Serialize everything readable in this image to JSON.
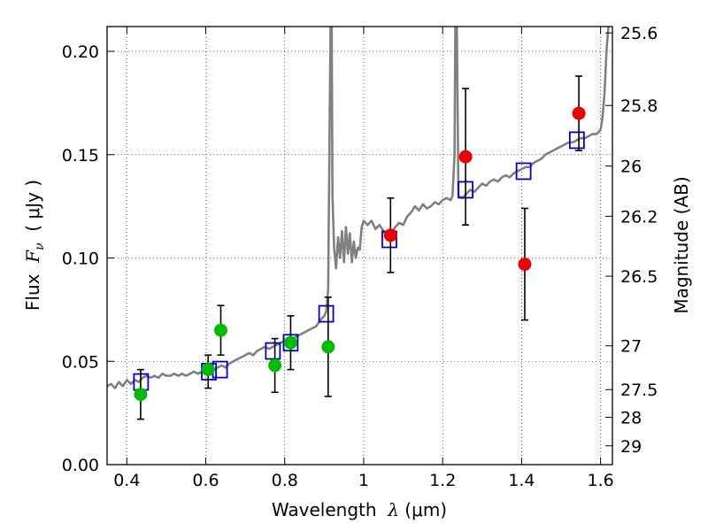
{
  "chart_data": {
    "type": "scatter",
    "xlabel_prefix": "Wavelength  ",
    "xlabel_symbol": "λ",
    "xlabel_suffix": " (μm)",
    "ylabel_prefix": "Flux  ",
    "ylabel_symbol": "F",
    "ylabel_subscript": "ν",
    "ylabel_suffix": "  ( μJy )",
    "y2label": "Magnitude (AB)",
    "xlim": [
      0.35,
      1.63
    ],
    "ylim": [
      0.0,
      0.212
    ],
    "grid": true,
    "grid_style": "dotted",
    "x_ticks": [
      {
        "value": 0.4,
        "label": "0.4"
      },
      {
        "value": 0.6,
        "label": "0.6"
      },
      {
        "value": 0.8,
        "label": "0.8"
      },
      {
        "value": 1.0,
        "label": "1"
      },
      {
        "value": 1.2,
        "label": "1.2"
      },
      {
        "value": 1.4,
        "label": "1.4"
      },
      {
        "value": 1.6,
        "label": "1.6"
      }
    ],
    "y_ticks": [
      {
        "value": 0.0,
        "label": "0.00"
      },
      {
        "value": 0.05,
        "label": "0.05"
      },
      {
        "value": 0.1,
        "label": "0.10"
      },
      {
        "value": 0.15,
        "label": "0.15"
      },
      {
        "value": 0.2,
        "label": "0.20"
      }
    ],
    "y2_ticks": [
      {
        "flux": 0.2089,
        "label": "25.6"
      },
      {
        "flux": 0.1738,
        "label": "25.8"
      },
      {
        "flux": 0.1445,
        "label": "26"
      },
      {
        "flux": 0.1202,
        "label": "26.2"
      },
      {
        "flux": 0.0912,
        "label": "26.5"
      },
      {
        "flux": 0.0575,
        "label": "27"
      },
      {
        "flux": 0.0363,
        "label": "27.5"
      },
      {
        "flux": 0.0229,
        "label": "28"
      },
      {
        "flux": 0.0091,
        "label": "29"
      }
    ],
    "series": [
      {
        "kind": "line",
        "color": "#808080",
        "points": [
          [
            0.35,
            0.038
          ],
          [
            0.36,
            0.039
          ],
          [
            0.37,
            0.037
          ],
          [
            0.38,
            0.04
          ],
          [
            0.39,
            0.038
          ],
          [
            0.4,
            0.041
          ],
          [
            0.41,
            0.039
          ],
          [
            0.42,
            0.041
          ],
          [
            0.43,
            0.04
          ],
          [
            0.44,
            0.042
          ],
          [
            0.45,
            0.043
          ],
          [
            0.46,
            0.042
          ],
          [
            0.47,
            0.043
          ],
          [
            0.48,
            0.042
          ],
          [
            0.49,
            0.044
          ],
          [
            0.5,
            0.043
          ],
          [
            0.51,
            0.043
          ],
          [
            0.52,
            0.044
          ],
          [
            0.53,
            0.043
          ],
          [
            0.54,
            0.044
          ],
          [
            0.55,
            0.043
          ],
          [
            0.56,
            0.044
          ],
          [
            0.57,
            0.045
          ],
          [
            0.58,
            0.044
          ],
          [
            0.59,
            0.045
          ],
          [
            0.6,
            0.046
          ],
          [
            0.61,
            0.045
          ],
          [
            0.62,
            0.046
          ],
          [
            0.63,
            0.047
          ],
          [
            0.64,
            0.048
          ],
          [
            0.65,
            0.047
          ],
          [
            0.66,
            0.049
          ],
          [
            0.67,
            0.05
          ],
          [
            0.68,
            0.051
          ],
          [
            0.69,
            0.052
          ],
          [
            0.7,
            0.053
          ],
          [
            0.71,
            0.054
          ],
          [
            0.72,
            0.053
          ],
          [
            0.73,
            0.055
          ],
          [
            0.74,
            0.056
          ],
          [
            0.75,
            0.057
          ],
          [
            0.76,
            0.056
          ],
          [
            0.77,
            0.057
          ],
          [
            0.78,
            0.058
          ],
          [
            0.79,
            0.059
          ],
          [
            0.8,
            0.06
          ],
          [
            0.81,
            0.059
          ],
          [
            0.82,
            0.061
          ],
          [
            0.83,
            0.062
          ],
          [
            0.84,
            0.063
          ],
          [
            0.85,
            0.064
          ],
          [
            0.86,
            0.065
          ],
          [
            0.87,
            0.066
          ],
          [
            0.88,
            0.067
          ],
          [
            0.89,
            0.07
          ],
          [
            0.9,
            0.072
          ],
          [
            0.905,
            0.074
          ],
          [
            0.91,
            0.085
          ],
          [
            0.913,
            0.15
          ],
          [
            0.916,
            0.212
          ],
          [
            0.919,
            0.212
          ],
          [
            0.921,
            0.13
          ],
          [
            0.925,
            0.105
          ],
          [
            0.93,
            0.095
          ],
          [
            0.935,
            0.11
          ],
          [
            0.94,
            0.1
          ],
          [
            0.945,
            0.113
          ],
          [
            0.95,
            0.098
          ],
          [
            0.955,
            0.115
          ],
          [
            0.96,
            0.102
          ],
          [
            0.965,
            0.112
          ],
          [
            0.97,
            0.098
          ],
          [
            0.975,
            0.108
          ],
          [
            0.98,
            0.1
          ],
          [
            0.985,
            0.105
          ],
          [
            0.99,
            0.104
          ],
          [
            0.995,
            0.115
          ],
          [
            1.0,
            0.118
          ],
          [
            1.01,
            0.116
          ],
          [
            1.02,
            0.118
          ],
          [
            1.03,
            0.114
          ],
          [
            1.04,
            0.116
          ],
          [
            1.05,
            0.113
          ],
          [
            1.06,
            0.11
          ],
          [
            1.07,
            0.112
          ],
          [
            1.08,
            0.115
          ],
          [
            1.09,
            0.117
          ],
          [
            1.1,
            0.116
          ],
          [
            1.11,
            0.12
          ],
          [
            1.12,
            0.122
          ],
          [
            1.13,
            0.125
          ],
          [
            1.14,
            0.123
          ],
          [
            1.15,
            0.126
          ],
          [
            1.16,
            0.124
          ],
          [
            1.17,
            0.125
          ],
          [
            1.18,
            0.127
          ],
          [
            1.19,
            0.126
          ],
          [
            1.2,
            0.128
          ],
          [
            1.21,
            0.129
          ],
          [
            1.22,
            0.128
          ],
          [
            1.225,
            0.13
          ],
          [
            1.23,
            0.15
          ],
          [
            1.232,
            0.212
          ],
          [
            1.236,
            0.212
          ],
          [
            1.24,
            0.13
          ],
          [
            1.25,
            0.129
          ],
          [
            1.26,
            0.131
          ],
          [
            1.27,
            0.133
          ],
          [
            1.28,
            0.132
          ],
          [
            1.29,
            0.134
          ],
          [
            1.3,
            0.136
          ],
          [
            1.31,
            0.135
          ],
          [
            1.32,
            0.137
          ],
          [
            1.33,
            0.138
          ],
          [
            1.34,
            0.137
          ],
          [
            1.35,
            0.139
          ],
          [
            1.36,
            0.14
          ],
          [
            1.37,
            0.139
          ],
          [
            1.38,
            0.141
          ],
          [
            1.39,
            0.142
          ],
          [
            1.4,
            0.143
          ],
          [
            1.41,
            0.144
          ],
          [
            1.42,
            0.144
          ],
          [
            1.43,
            0.146
          ],
          [
            1.44,
            0.147
          ],
          [
            1.45,
            0.148
          ],
          [
            1.46,
            0.15
          ],
          [
            1.47,
            0.151
          ],
          [
            1.48,
            0.152
          ],
          [
            1.49,
            0.153
          ],
          [
            1.5,
            0.154
          ],
          [
            1.51,
            0.155
          ],
          [
            1.52,
            0.156
          ],
          [
            1.53,
            0.156
          ],
          [
            1.54,
            0.157
          ],
          [
            1.55,
            0.158
          ],
          [
            1.56,
            0.158
          ],
          [
            1.57,
            0.159
          ],
          [
            1.58,
            0.16
          ],
          [
            1.59,
            0.16
          ],
          [
            1.6,
            0.162
          ],
          [
            1.605,
            0.168
          ],
          [
            1.61,
            0.18
          ],
          [
            1.615,
            0.2
          ],
          [
            1.62,
            0.212
          ]
        ]
      },
      {
        "kind": "markers",
        "marker": "square-open",
        "color": "#0000cc",
        "points": [
          [
            0.436,
            0.04
          ],
          [
            0.608,
            0.045
          ],
          [
            0.636,
            0.046
          ],
          [
            0.77,
            0.055
          ],
          [
            0.815,
            0.059
          ],
          [
            0.905,
            0.073
          ],
          [
            1.065,
            0.109
          ],
          [
            1.258,
            0.133
          ],
          [
            1.405,
            0.142
          ],
          [
            1.54,
            0.157
          ]
        ]
      },
      {
        "kind": "markers",
        "marker": "circle",
        "color": "#00bb00",
        "points": [
          {
            "x": 0.435,
            "y": 0.034,
            "err_lo": 0.012,
            "err_hi": 0.012
          },
          {
            "x": 0.606,
            "y": 0.046,
            "err_lo": 0.009,
            "err_hi": 0.007
          },
          {
            "x": 0.638,
            "y": 0.065,
            "err_lo": 0.012,
            "err_hi": 0.012
          },
          {
            "x": 0.775,
            "y": 0.048,
            "err_lo": 0.013,
            "err_hi": 0.013
          },
          {
            "x": 0.815,
            "y": 0.059,
            "err_lo": 0.013,
            "err_hi": 0.013
          },
          {
            "x": 0.91,
            "y": 0.057,
            "err_lo": 0.024,
            "err_hi": 0.024
          }
        ]
      },
      {
        "kind": "markers",
        "marker": "circle",
        "color": "#ee0000",
        "points": [
          {
            "x": 1.068,
            "y": 0.111,
            "err_lo": 0.018,
            "err_hi": 0.018
          },
          {
            "x": 1.258,
            "y": 0.149,
            "err_lo": 0.033,
            "err_hi": 0.033
          },
          {
            "x": 1.408,
            "y": 0.097,
            "err_lo": 0.027,
            "err_hi": 0.027
          },
          {
            "x": 1.545,
            "y": 0.17,
            "err_lo": 0.018,
            "err_hi": 0.018
          }
        ]
      }
    ]
  }
}
